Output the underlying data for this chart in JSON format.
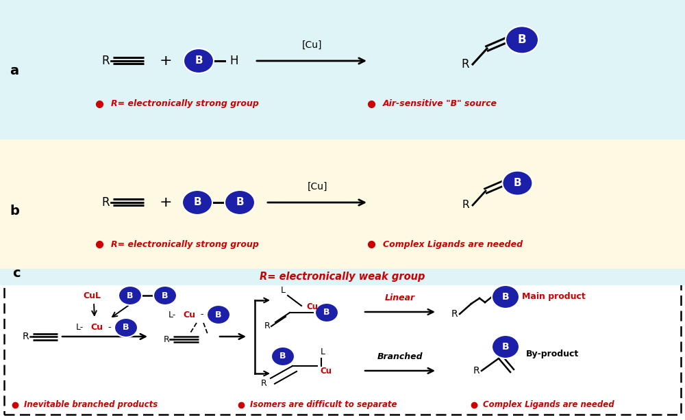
{
  "panel_a_bg": "#dff4f7",
  "panel_b_bg": "#fdf9e3",
  "blue": "#1c1fa8",
  "red": "#cc0000",
  "black": "#000000",
  "label_a": "a",
  "label_b": "b",
  "label_c": "c",
  "bullet_a1": "R= electronically strong group",
  "bullet_a2": "Air-sensitive \"B\" source",
  "bullet_b1": "R= electronically strong group",
  "bullet_b2": "Complex Ligands are needed",
  "bullet_c1": "Inevitable branched products",
  "bullet_c2": "Isomers are difficult to separate",
  "bullet_c3": "Complex Ligands are needed",
  "panel_c_title": "R= electronically weak group",
  "linear_label": "Linear",
  "branched_label": "Branched",
  "main_product": "Main product",
  "by_product": "By-product",
  "cu_label": "[Cu]"
}
